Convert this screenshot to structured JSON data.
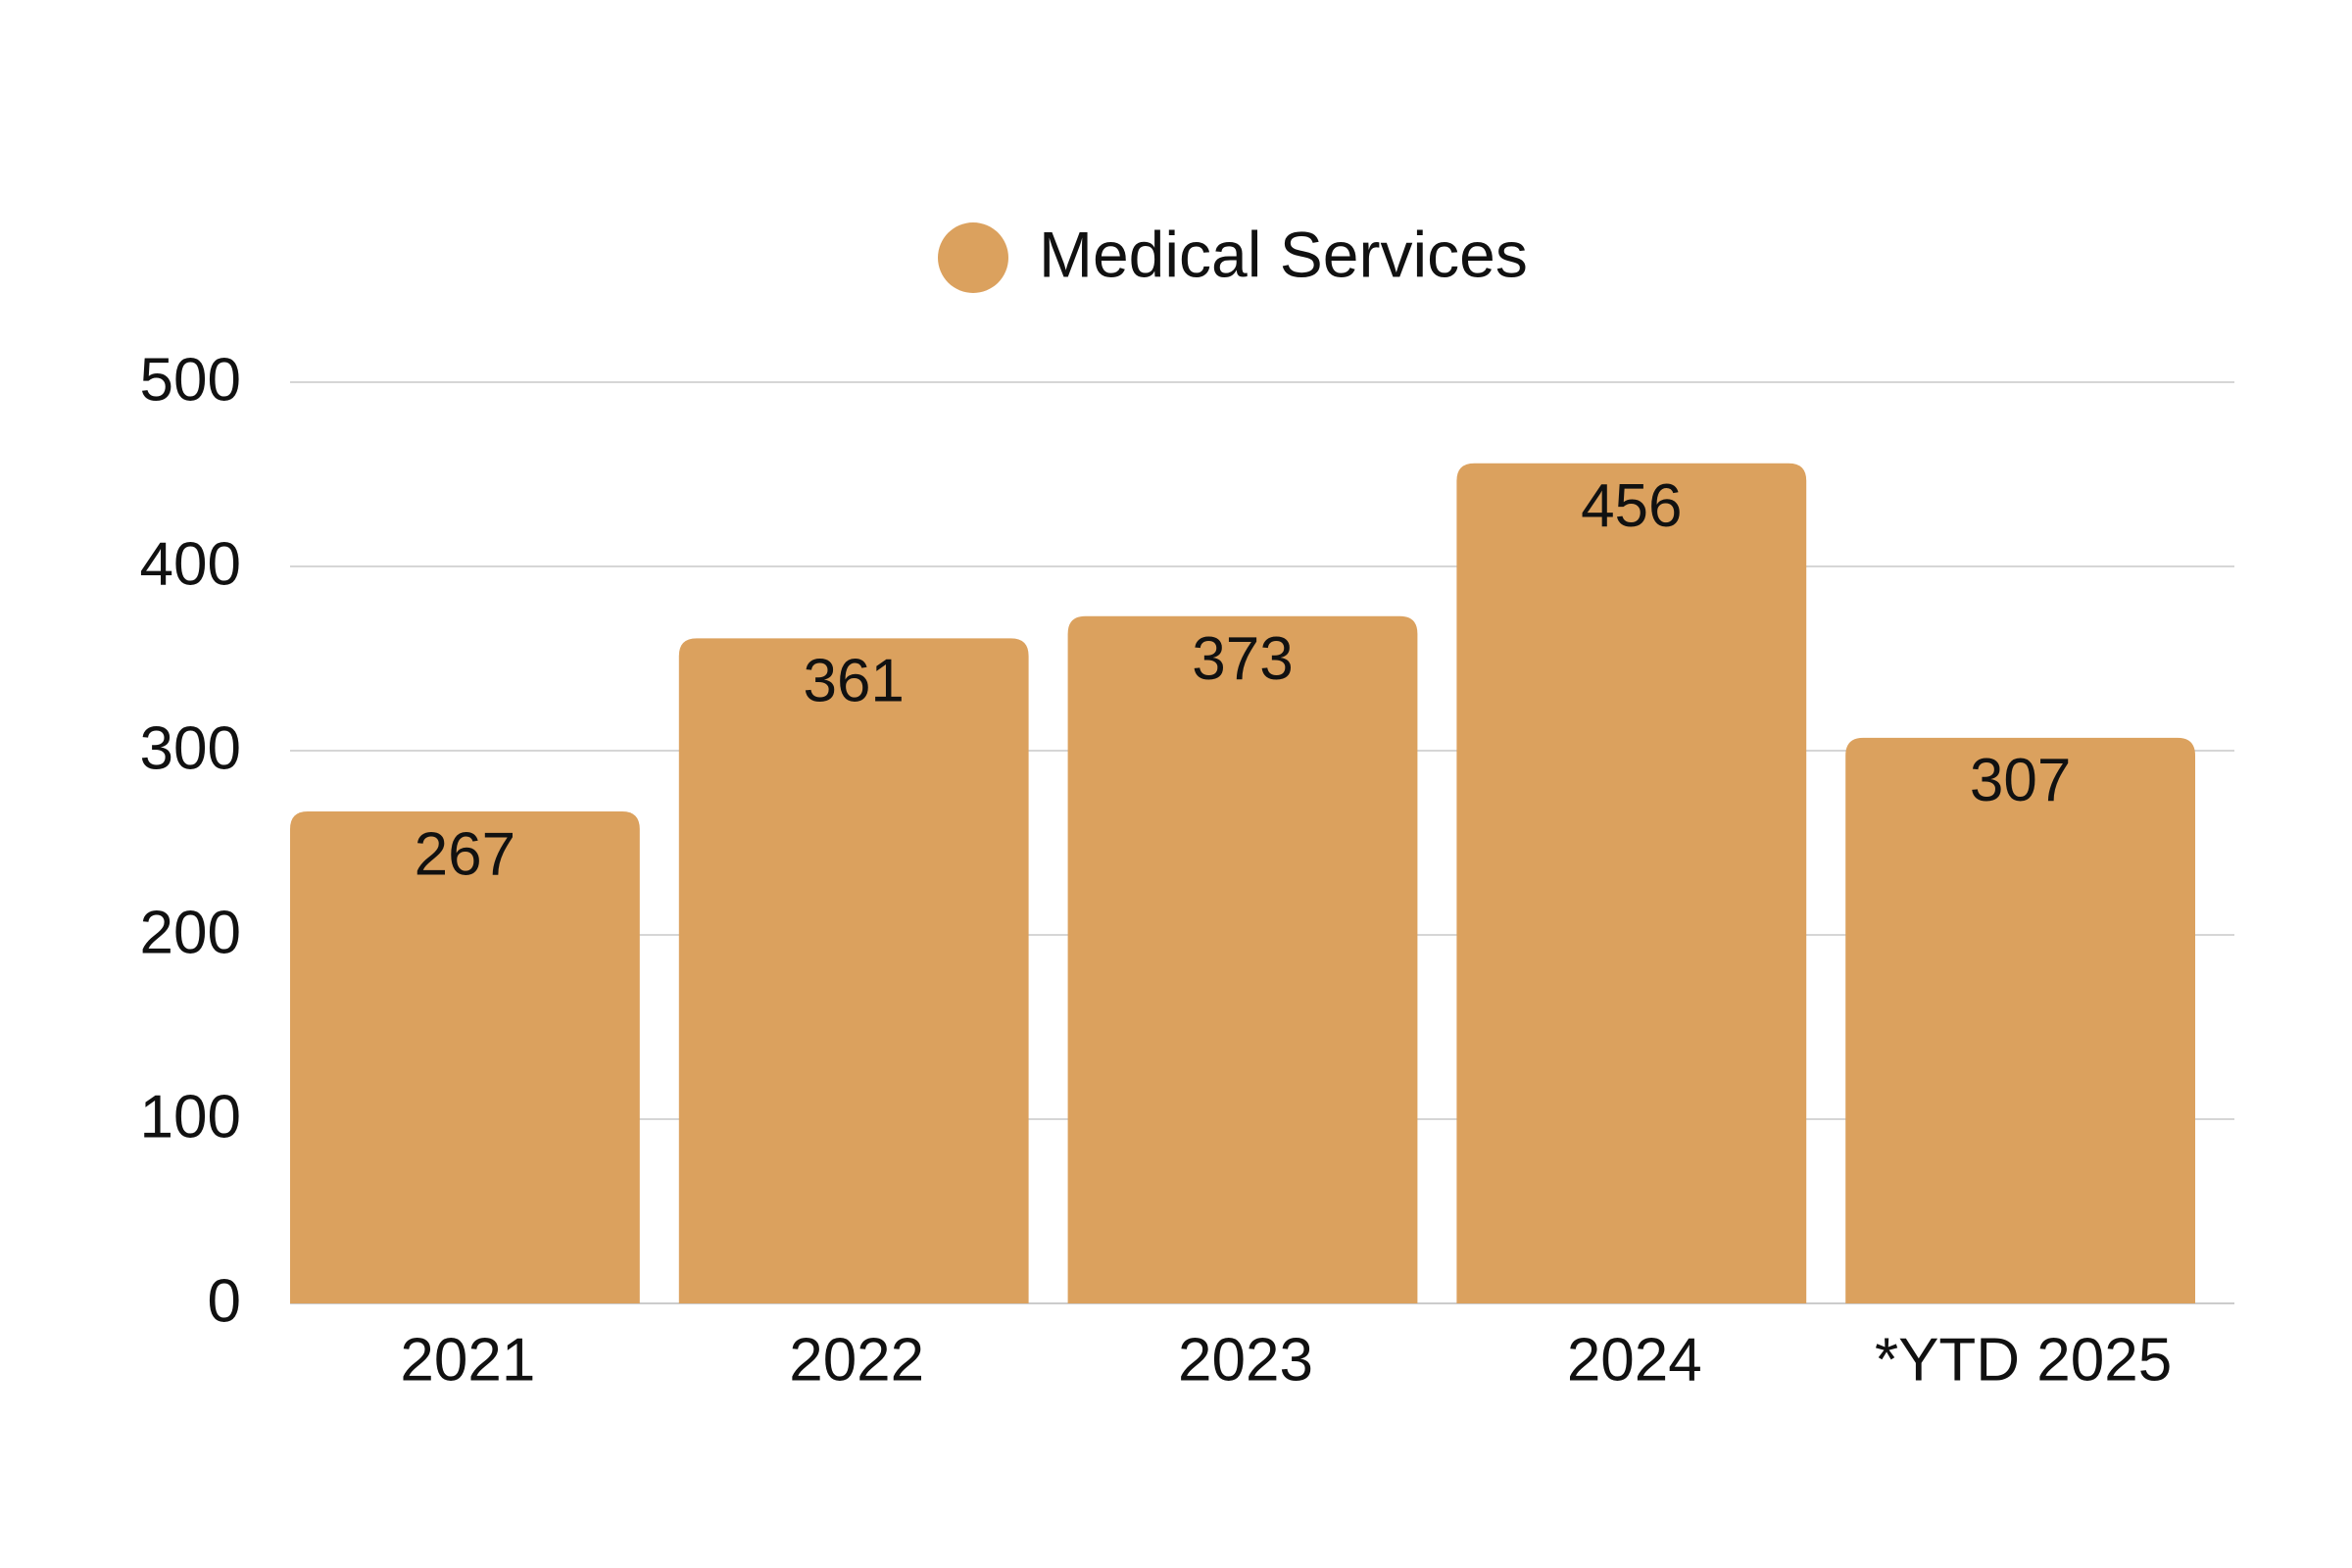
{
  "chart_data": {
    "type": "bar",
    "categories": [
      "2021",
      "2022",
      "2023",
      "2024",
      "*YTD 2025"
    ],
    "series": [
      {
        "name": "Medical Services",
        "values": [
          267,
          361,
          373,
          456,
          307
        ],
        "color": "#DBA15E"
      }
    ],
    "data_labels": [
      "267",
      "361",
      "373",
      "456",
      "307"
    ],
    "ylim": [
      0,
      500
    ],
    "yticks": [
      0,
      100,
      200,
      300,
      400,
      500
    ],
    "ytick_labels": [
      "0",
      "100",
      "200",
      "300",
      "400",
      "500"
    ],
    "grid": true,
    "legend": {
      "position": "top-center",
      "marker": "circle"
    },
    "title": "",
    "xlabel": "",
    "ylabel": ""
  },
  "colors": {
    "bar": "#DBA15E",
    "grid": "#d6d6d6",
    "text": "#111111",
    "background": "#ffffff"
  }
}
